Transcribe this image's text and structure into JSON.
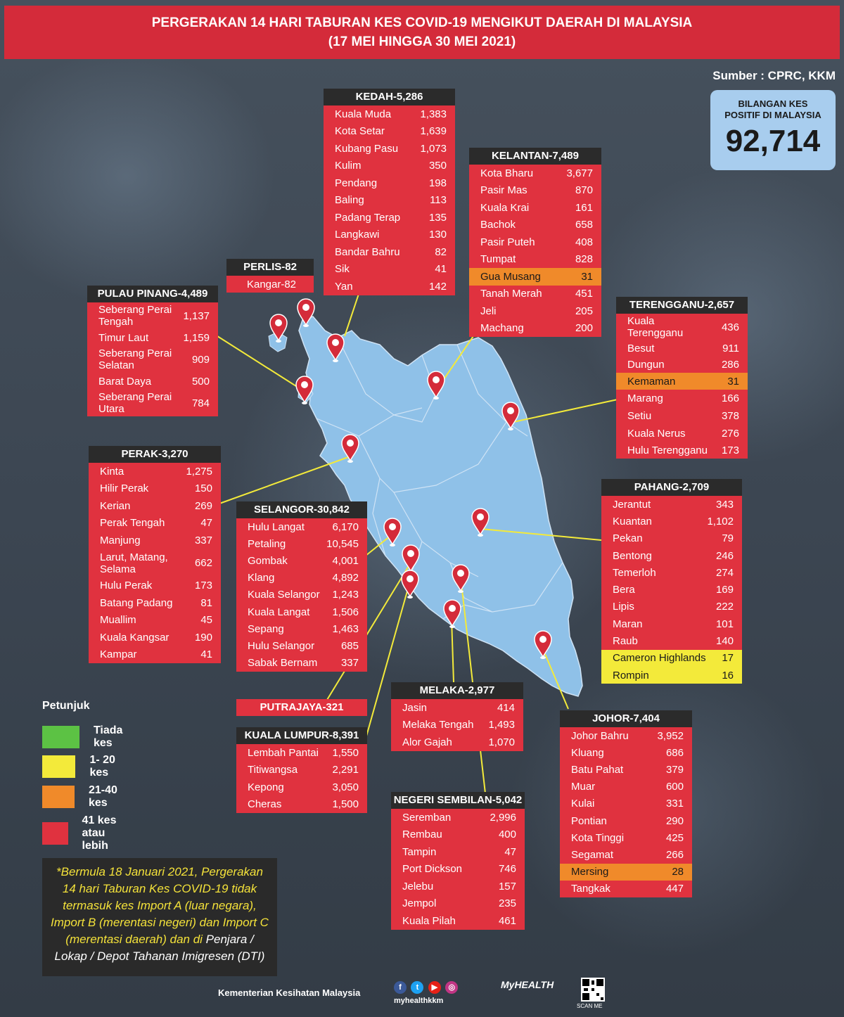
{
  "header": {
    "line1": "PERGERAKAN 14 HARI TABURAN KES COVID-19 MENGIKUT DAERAH DI MALAYSIA",
    "line2": "(17 MEI HINGGA 30 MEI 2021)"
  },
  "source": "Sumber : CPRC, KKM",
  "total": {
    "label1": "BILANGAN KES",
    "label2": "POSITIF DI MALAYSIA",
    "value": "92,714"
  },
  "states": {
    "kedah": {
      "title": "KEDAH-5,286",
      "rows": [
        {
          "name": "Kuala Muda",
          "value": "1,383"
        },
        {
          "name": "Kota Setar",
          "value": "1,639"
        },
        {
          "name": "Kubang Pasu",
          "value": "1,073"
        },
        {
          "name": "Kulim",
          "value": "350"
        },
        {
          "name": "Pendang",
          "value": "198"
        },
        {
          "name": "Baling",
          "value": "113"
        },
        {
          "name": "Padang Terap",
          "value": "135"
        },
        {
          "name": "Langkawi",
          "value": "130"
        },
        {
          "name": "Bandar Bahru",
          "value": "82"
        },
        {
          "name": "Sik",
          "value": "41"
        },
        {
          "name": "Yan",
          "value": "142"
        }
      ]
    },
    "kelantan": {
      "title": "KELANTAN-7,489",
      "rows": [
        {
          "name": "Kota Bharu",
          "value": "3,677"
        },
        {
          "name": "Pasir Mas",
          "value": "870"
        },
        {
          "name": "Kuala Krai",
          "value": "161"
        },
        {
          "name": "Bachok",
          "value": "658"
        },
        {
          "name": "Pasir Puteh",
          "value": "408"
        },
        {
          "name": "Tumpat",
          "value": "828"
        },
        {
          "name": "Gua Musang",
          "value": "31",
          "level": "orange"
        },
        {
          "name": "Tanah Merah",
          "value": "451"
        },
        {
          "name": "Jeli",
          "value": "205"
        },
        {
          "name": "Machang",
          "value": "200"
        }
      ]
    },
    "perlis": {
      "title": "PERLIS-82",
      "rows": [
        {
          "name": "Kangar-82",
          "value": ""
        }
      ]
    },
    "pulau_pinang": {
      "title": "PULAU PINANG-4,489",
      "rows": [
        {
          "name": "Seberang Perai\nTengah",
          "value": "1,137"
        },
        {
          "name": "Timur Laut",
          "value": "1,159"
        },
        {
          "name": "Seberang Perai\nSelatan",
          "value": "909"
        },
        {
          "name": "Barat Daya",
          "value": "500"
        },
        {
          "name": "Seberang Perai\nUtara",
          "value": "784"
        }
      ]
    },
    "terengganu": {
      "title": "TERENGGANU-2,657",
      "rows": [
        {
          "name": "Kuala\nTerengganu",
          "value": "436"
        },
        {
          "name": "Besut",
          "value": "911"
        },
        {
          "name": "Dungun",
          "value": "286"
        },
        {
          "name": "Kemaman",
          "value": "31",
          "level": "orange"
        },
        {
          "name": "Marang",
          "value": "166"
        },
        {
          "name": "Setiu",
          "value": "378"
        },
        {
          "name": "Kuala Nerus",
          "value": "276"
        },
        {
          "name": "Hulu Terengganu",
          "value": "173"
        }
      ]
    },
    "perak": {
      "title": "PERAK-3,270",
      "rows": [
        {
          "name": "Kinta",
          "value": "1,275"
        },
        {
          "name": "Hilir Perak",
          "value": "150"
        },
        {
          "name": "Kerian",
          "value": "269"
        },
        {
          "name": "Perak Tengah",
          "value": "47"
        },
        {
          "name": "Manjung",
          "value": "337"
        },
        {
          "name": "Larut, Matang,\nSelama",
          "value": "662"
        },
        {
          "name": "Hulu Perak",
          "value": "173"
        },
        {
          "name": "Batang Padang",
          "value": "81"
        },
        {
          "name": "Muallim",
          "value": "45"
        },
        {
          "name": "Kuala Kangsar",
          "value": "190"
        },
        {
          "name": "Kampar",
          "value": "41"
        }
      ]
    },
    "selangor": {
      "title": "SELANGOR-30,842",
      "rows": [
        {
          "name": "Hulu Langat",
          "value": "6,170"
        },
        {
          "name": "Petaling",
          "value": "10,545"
        },
        {
          "name": "Gombak",
          "value": "4,001"
        },
        {
          "name": "Klang",
          "value": "4,892"
        },
        {
          "name": "Kuala Selangor",
          "value": "1,243"
        },
        {
          "name": "Kuala Langat",
          "value": "1,506"
        },
        {
          "name": "Sepang",
          "value": "1,463"
        },
        {
          "name": "Hulu Selangor",
          "value": "685"
        },
        {
          "name": "Sabak Bernam",
          "value": "337"
        }
      ]
    },
    "pahang": {
      "title": "PAHANG-2,709",
      "rows": [
        {
          "name": "Jerantut",
          "value": "343"
        },
        {
          "name": "Kuantan",
          "value": "1,102"
        },
        {
          "name": "Pekan",
          "value": "79"
        },
        {
          "name": "Bentong",
          "value": "246"
        },
        {
          "name": "Temerloh",
          "value": "274"
        },
        {
          "name": "Bera",
          "value": "169"
        },
        {
          "name": "Lipis",
          "value": "222"
        },
        {
          "name": "Maran",
          "value": "101"
        },
        {
          "name": "Raub",
          "value": "140"
        },
        {
          "name": "Cameron Highlands",
          "value": "17",
          "level": "yellow"
        },
        {
          "name": "Rompin",
          "value": "16",
          "level": "yellow"
        }
      ]
    },
    "putrajaya": {
      "title": "PUTRAJAYA-321"
    },
    "kuala_lumpur": {
      "title": "KUALA LUMPUR-8,391",
      "rows": [
        {
          "name": "Lembah Pantai",
          "value": "1,550"
        },
        {
          "name": "Titiwangsa",
          "value": "2,291"
        },
        {
          "name": "Kepong",
          "value": "3,050"
        },
        {
          "name": "Cheras",
          "value": "1,500"
        }
      ]
    },
    "melaka": {
      "title": "MELAKA-2,977",
      "rows": [
        {
          "name": "Jasin",
          "value": "414"
        },
        {
          "name": "Melaka Tengah",
          "value": "1,493"
        },
        {
          "name": "Alor Gajah",
          "value": "1,070"
        }
      ]
    },
    "negeri_sembilan": {
      "title": "NEGERI SEMBILAN-5,042",
      "rows": [
        {
          "name": "Seremban",
          "value": "2,996"
        },
        {
          "name": "Rembau",
          "value": "400"
        },
        {
          "name": "Tampin",
          "value": "47"
        },
        {
          "name": "Port Dickson",
          "value": "746"
        },
        {
          "name": "Jelebu",
          "value": "157"
        },
        {
          "name": "Jempol",
          "value": "235"
        },
        {
          "name": "Kuala Pilah",
          "value": "461"
        }
      ]
    },
    "johor": {
      "title": "JOHOR-7,404",
      "rows": [
        {
          "name": "Johor Bahru",
          "value": "3,952"
        },
        {
          "name": "Kluang",
          "value": "686"
        },
        {
          "name": "Batu Pahat",
          "value": "379"
        },
        {
          "name": "Muar",
          "value": "600"
        },
        {
          "name": "Kulai",
          "value": "331"
        },
        {
          "name": "Pontian",
          "value": "290"
        },
        {
          "name": "Kota Tinggi",
          "value": "425"
        },
        {
          "name": "Segamat",
          "value": "266"
        },
        {
          "name": "Mersing",
          "value": "28",
          "level": "orange"
        },
        {
          "name": "Tangkak",
          "value": "447"
        }
      ]
    }
  },
  "legend": {
    "title": "Petunjuk",
    "items": [
      {
        "label": "Tiada kes",
        "color": "#5cc244"
      },
      {
        "label": "1- 20 kes",
        "color": "#f3ea3a"
      },
      {
        "label": "21-40 kes",
        "color": "#f08a2a"
      },
      {
        "label": "41 kes atau lebih",
        "color": "#e0323f"
      }
    ]
  },
  "note": {
    "text1": "*Bermula 18 Januari 2021, Pergerakan 14 hari Taburan Kes COVID-19 tidak termasuk kes Import A (luar negara), Import B (merentasi negeri) dan Import C (merentasi daerah) dan di ",
    "text2": "Penjara / Lokap / Depot Tahanan Imigresen (DTI)"
  },
  "footer": {
    "ministry": "Kementerian Kesihatan Malaysia",
    "handle": "myhealthkkm",
    "brand": "MyHEALTH",
    "qr_label": "SCAN ME"
  },
  "colors": {
    "red": "#e0323f",
    "orange": "#f08a2a",
    "yellow": "#f3ea3a",
    "map": "#8fc1e8",
    "pin": "#d42b3a"
  }
}
